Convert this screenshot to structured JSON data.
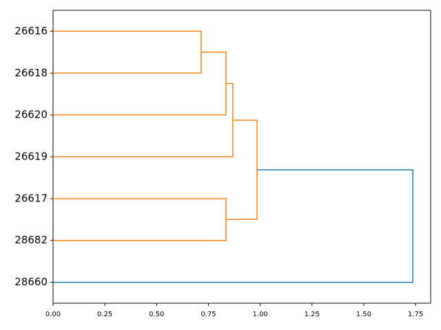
{
  "chart_data": {
    "type": "dendrogram",
    "orientation": "left",
    "tree": {
      "height": 1.737,
      "color": "#1f77b4",
      "children": [
        {
          "height": 0.985,
          "color": "#ff7f0e",
          "children": [
            {
              "height": 0.868,
              "color": "#ff7f0e",
              "children": [
                {
                  "height": 0.835,
                  "color": "#ff7f0e",
                  "children": [
                    {
                      "height": 0.715,
                      "color": "#ff7f0e",
                      "children": [
                        "26616",
                        "26618"
                      ]
                    },
                    "26620"
                  ]
                },
                "26619"
              ]
            },
            {
              "height": 0.835,
              "color": "#ff7f0e",
              "children": [
                "26617",
                "28682"
              ]
            }
          ]
        },
        "28660"
      ]
    },
    "xlim": [
      0,
      1.823
    ],
    "xticks": [
      {
        "value": 0,
        "label": "0.00"
      },
      {
        "value": 0.25,
        "label": "0.25"
      },
      {
        "value": 0.5,
        "label": "0.50"
      },
      {
        "value": 0.75,
        "label": "0.75"
      },
      {
        "value": 1,
        "label": "1.00"
      },
      {
        "value": 1.25,
        "label": "1.25"
      },
      {
        "value": 1.5,
        "label": "1.50"
      },
      {
        "value": 1.75,
        "label": "1.75"
      }
    ]
  }
}
